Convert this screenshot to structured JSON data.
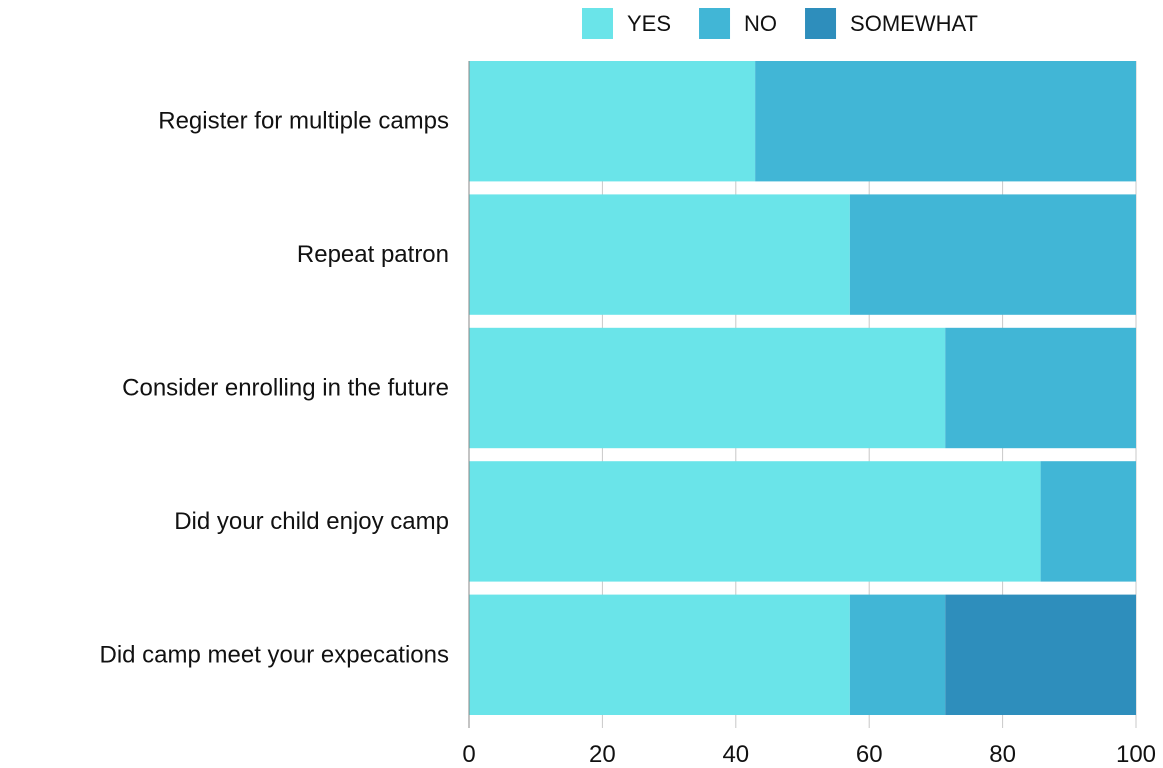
{
  "chart_data": {
    "type": "bar",
    "stacked": true,
    "orientation": "horizontal",
    "title": "",
    "xlabel": "",
    "ylabel": "",
    "xlim": [
      0,
      100
    ],
    "ticks": [
      "0",
      "20",
      "40",
      "60",
      "80",
      "100"
    ],
    "tick_values": [
      0,
      20,
      40,
      60,
      80,
      100
    ],
    "grid": true,
    "legend_position": "top",
    "categories": [
      "Register for multiple camps",
      "Repeat patron",
      "Consider enrolling in the future",
      "Did your child enjoy camp",
      "Did camp meet your expecations"
    ],
    "series": [
      {
        "name": "YES",
        "color": "#6ae4e9",
        "values": [
          42.9,
          57.1,
          71.4,
          85.7,
          57.1
        ]
      },
      {
        "name": "NO",
        "color": "#41b6d6",
        "values": [
          57.1,
          42.9,
          28.6,
          14.3,
          14.3
        ]
      },
      {
        "name": "SOMEWHAT",
        "color": "#2e8ebc",
        "values": [
          0,
          0,
          0,
          0,
          28.6
        ]
      }
    ]
  }
}
